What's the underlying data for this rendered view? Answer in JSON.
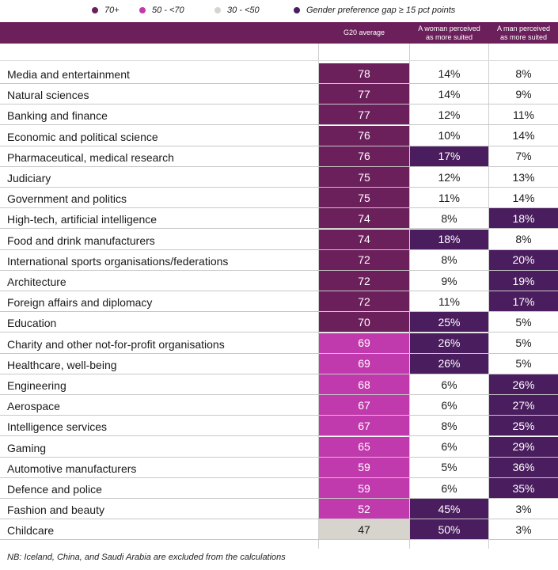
{
  "legend": [
    {
      "label": "70+",
      "color": "#6b1f5b"
    },
    {
      "label": "50 - <70",
      "color": "#c13aad"
    },
    {
      "label": "30 - <50",
      "color": "#d6d4cc"
    },
    {
      "label": "Gender preference gap ≥ 15 pct points",
      "color": "#4a1d5e"
    }
  ],
  "header": {
    "avg": "G20 average",
    "woman_line1": "A woman perceived",
    "woman_line2": "as more suited",
    "man_line1": "A man perceived",
    "man_line2": "as more suited"
  },
  "colors": {
    "band_70_plus": "#6b1f5b",
    "band_50_70": "#c13aad",
    "band_30_50": "#d6d4cc",
    "gap_highlight": "#4a1d5e"
  },
  "chart_data": {
    "type": "table",
    "columns": [
      "G20 average",
      "A woman perceived as more suited",
      "A man perceived as more suited"
    ],
    "rows": [
      {
        "label": "Media and entertainment",
        "avg": "78",
        "woman": "14%",
        "man": "8%",
        "gap": "none"
      },
      {
        "label": "Natural sciences",
        "avg": "77",
        "woman": "14%",
        "man": "9%",
        "gap": "none"
      },
      {
        "label": "Banking and finance",
        "avg": "77",
        "woman": "12%",
        "man": "11%",
        "gap": "none"
      },
      {
        "label": "Economic and political science",
        "avg": "76",
        "woman": "10%",
        "man": "14%",
        "gap": "none"
      },
      {
        "label": "Pharmaceutical, medical research",
        "avg": "76",
        "woman": "17%",
        "man": "7%",
        "gap": "woman"
      },
      {
        "label": "Judiciary",
        "avg": "75",
        "woman": "12%",
        "man": "13%",
        "gap": "none"
      },
      {
        "label": "Government and politics",
        "avg": "75",
        "woman": "11%",
        "man": "14%",
        "gap": "none"
      },
      {
        "label": "High-tech, artificial intelligence",
        "avg": "74",
        "woman": "8%",
        "man": "18%",
        "gap": "man"
      },
      {
        "label": "Food and drink manufacturers",
        "avg": "74",
        "woman": "18%",
        "man": "8%",
        "gap": "woman"
      },
      {
        "label": "International sports organisations/federations",
        "avg": "72",
        "woman": "8%",
        "man": "20%",
        "gap": "man"
      },
      {
        "label": "Architecture",
        "avg": "72",
        "woman": "9%",
        "man": "19%",
        "gap": "man"
      },
      {
        "label": "Foreign affairs and diplomacy",
        "avg": "72",
        "woman": "11%",
        "man": "17%",
        "gap": "man"
      },
      {
        "label": "Education",
        "avg": "70",
        "woman": "25%",
        "man": "5%",
        "gap": "woman"
      },
      {
        "label": "Charity and other not-for-profit organisations",
        "avg": "69",
        "woman": "26%",
        "man": "5%",
        "gap": "woman"
      },
      {
        "label": "Healthcare, well-being",
        "avg": "69",
        "woman": "26%",
        "man": "5%",
        "gap": "woman"
      },
      {
        "label": "Engineering",
        "avg": "68",
        "woman": "6%",
        "man": "26%",
        "gap": "man"
      },
      {
        "label": "Aerospace",
        "avg": "67",
        "woman": "6%",
        "man": "27%",
        "gap": "man"
      },
      {
        "label": "Intelligence services",
        "avg": "67",
        "woman": "8%",
        "man": "25%",
        "gap": "man"
      },
      {
        "label": "Gaming",
        "avg": "65",
        "woman": "6%",
        "man": "29%",
        "gap": "man"
      },
      {
        "label": "Automotive manufacturers",
        "avg": "59",
        "woman": "5%",
        "man": "36%",
        "gap": "man"
      },
      {
        "label": "Defence and police",
        "avg": "59",
        "woman": "6%",
        "man": "35%",
        "gap": "man"
      },
      {
        "label": "Fashion and beauty",
        "avg": "52",
        "woman": "45%",
        "man": "3%",
        "gap": "woman"
      },
      {
        "label": "Childcare",
        "avg": "47",
        "woman": "50%",
        "man": "3%",
        "gap": "woman"
      }
    ]
  },
  "footnote": "NB: Iceland, China, and Saudi Arabia are excluded from the calculations"
}
